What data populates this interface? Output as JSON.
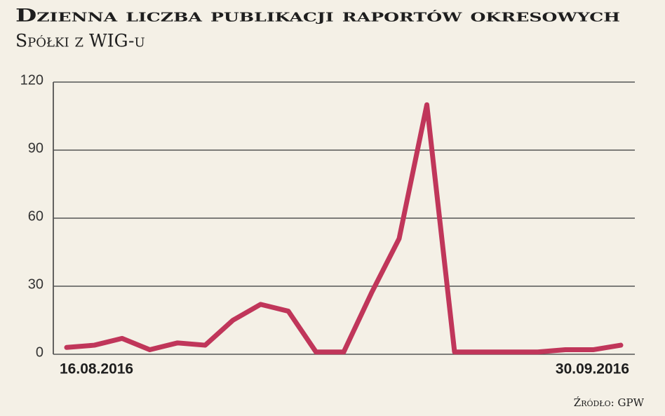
{
  "chart_data": {
    "type": "line",
    "title": "Dzienna liczba publikacji raportów okresowych",
    "subtitle": "Spółki z WIG-u",
    "source": "Źródło: GPW",
    "categories": [
      "16.08.2016",
      null,
      null,
      null,
      null,
      null,
      null,
      null,
      null,
      null,
      null,
      null,
      null,
      null,
      null,
      null,
      null,
      null,
      null,
      null,
      "30.09.2016"
    ],
    "values": [
      3,
      4,
      7,
      2,
      5,
      4,
      15,
      22,
      19,
      1,
      1,
      27,
      51,
      110,
      1,
      1,
      1,
      1,
      2,
      2,
      4
    ],
    "color": "#c0365a",
    "ylim": [
      0,
      120
    ],
    "yticks": [
      0,
      30,
      60,
      90,
      120
    ],
    "grid": true
  }
}
